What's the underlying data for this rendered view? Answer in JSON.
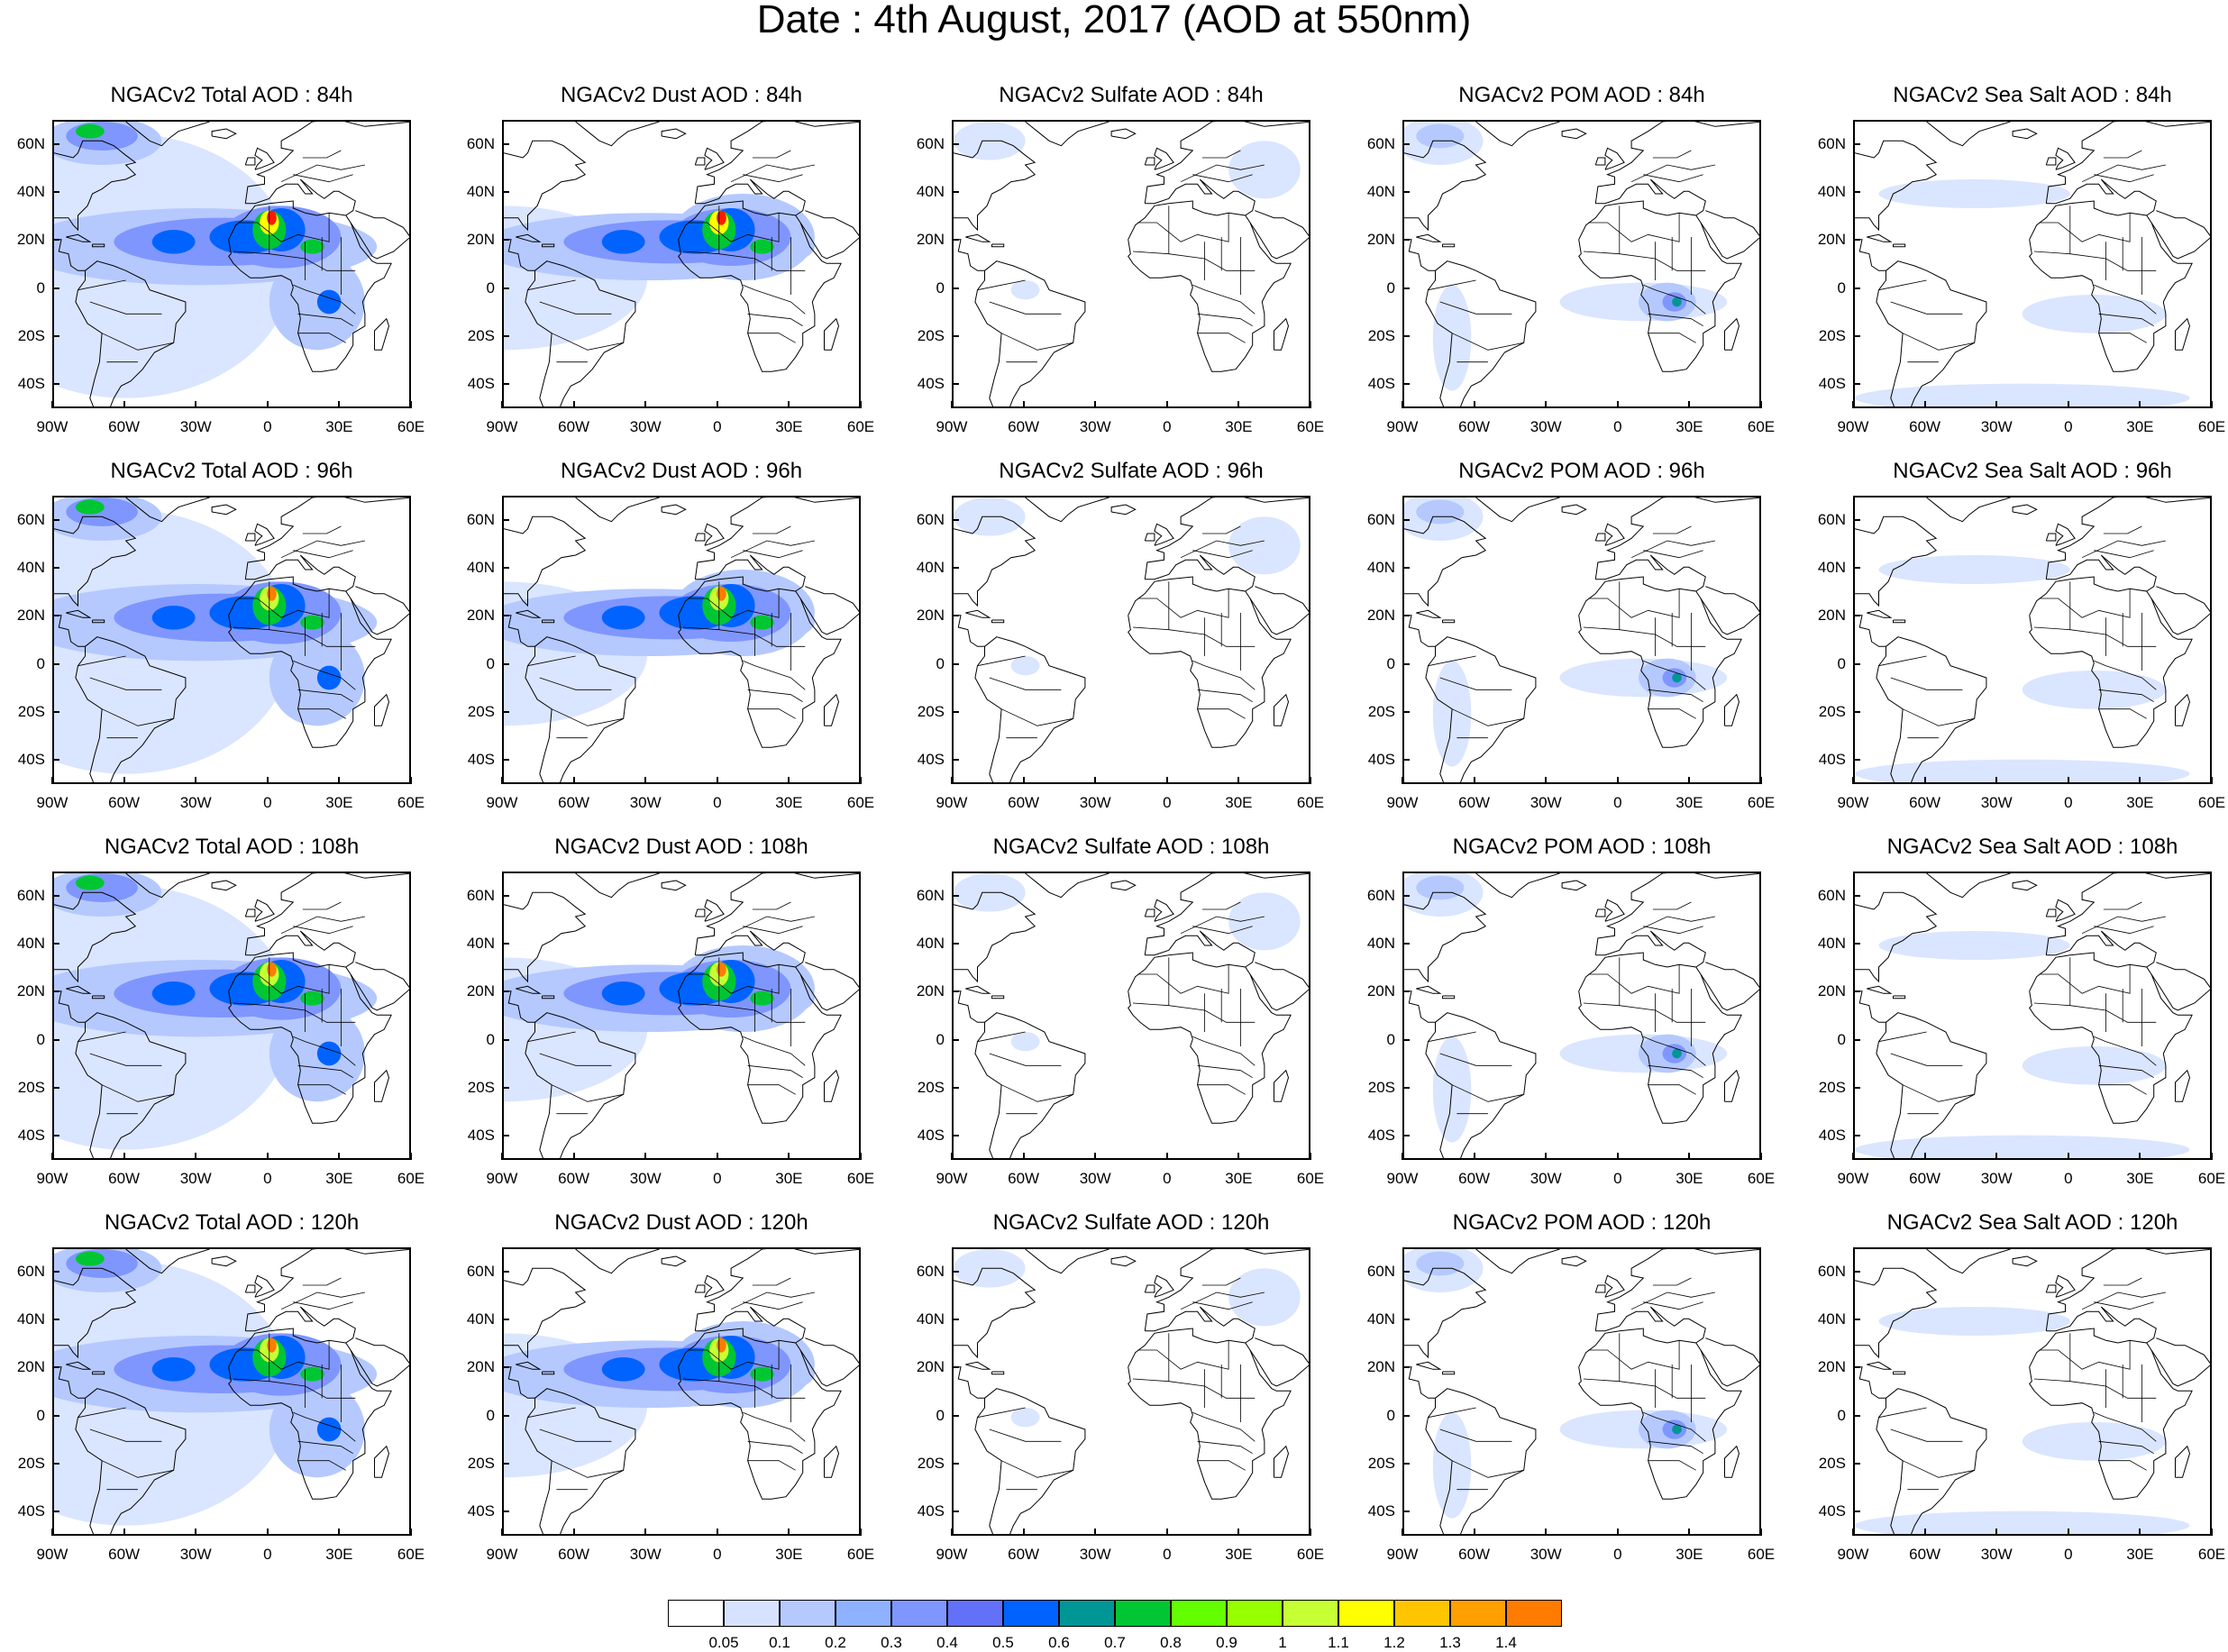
{
  "title": "Date : 4th August, 2017 (AOD at 550nm)",
  "rows": [
    "84h",
    "96h",
    "108h",
    "120h"
  ],
  "panels": [
    [
      "NGACv2 Total AOD : 84h",
      "NGACv2 Dust AOD : 84h",
      "NGACv2 Sulfate AOD : 84h",
      "NGACv2 POM AOD : 84h",
      "NGACv2 Sea Salt AOD : 84h"
    ],
    [
      "NGACv2 Total AOD : 96h",
      "NGACv2 Dust AOD : 96h",
      "NGACv2 Sulfate AOD : 96h",
      "NGACv2 POM AOD : 96h",
      "NGACv2 Sea Salt AOD : 96h"
    ],
    [
      "NGACv2 Total AOD : 108h",
      "NGACv2 Dust AOD : 108h",
      "NGACv2 Sulfate AOD : 108h",
      "NGACv2 POM AOD : 108h",
      "NGACv2 Sea Salt AOD : 108h"
    ],
    [
      "NGACv2 Total AOD : 120h",
      "NGACv2 Dust AOD : 120h",
      "NGACv2 Sulfate AOD : 120h",
      "NGACv2 POM AOD : 120h",
      "NGACv2 Sea Salt  AOD : 120h"
    ]
  ],
  "lat_ticks": [
    "60N",
    "40N",
    "20N",
    "0",
    "20S",
    "40S"
  ],
  "lon_ticks": [
    "90W",
    "60W",
    "30W",
    "0",
    "30E",
    "60E"
  ],
  "map_extent": {
    "lon": [
      -90,
      60
    ],
    "lat": [
      -50,
      70
    ]
  },
  "colorbar": {
    "levels": [
      "0.05",
      "0.1",
      "0.2",
      "0.3",
      "0.4",
      "0.5",
      "0.6",
      "0.7",
      "0.8",
      "0.9",
      "1",
      "1.1",
      "1.2",
      "1.3",
      "1.4"
    ],
    "colors": [
      "#ffffff",
      "#d6e2ff",
      "#b5c9ff",
      "#8eb2ff",
      "#7f96ff",
      "#6370f8",
      "#0063ff",
      "#009696",
      "#00c633",
      "#63ff00",
      "#96ff00",
      "#c6ff33",
      "#ffff00",
      "#ffc600",
      "#ffa000",
      "#ff7c00",
      "#ff1900"
    ]
  }
}
